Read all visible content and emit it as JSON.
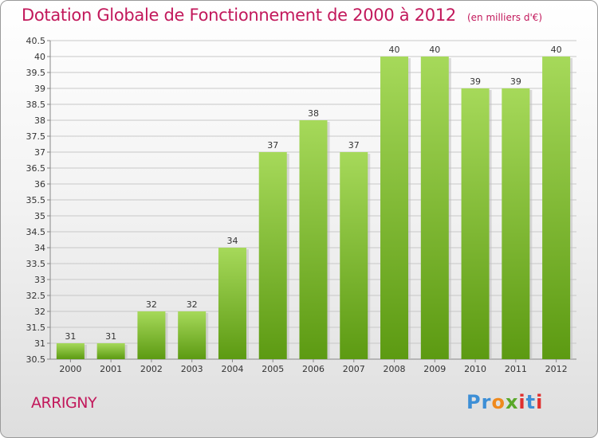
{
  "title": "Dotation Globale de Fonctionnement de 2000 à 2012",
  "unit": "(en milliers d'€)",
  "commune": "ARRIGNY",
  "logo": {
    "letters": [
      "P",
      "r",
      "o",
      "x",
      "i",
      "t",
      "i"
    ],
    "colors": [
      "#3d8fd6",
      "#3d8fd6",
      "#ef8a1e",
      "#5aa82a",
      "#e0302f",
      "#3d8fd6",
      "#e0302f"
    ]
  },
  "colors": {
    "title": "#c2185b",
    "bar_top": "#a6d95a",
    "bar_bottom": "#5c9a12",
    "grid": "#c8c8c8"
  },
  "chart_data": {
    "type": "bar",
    "categories": [
      "2000",
      "2001",
      "2002",
      "2003",
      "2004",
      "2005",
      "2006",
      "2007",
      "2008",
      "2009",
      "2010",
      "2011",
      "2012"
    ],
    "values": [
      31,
      31,
      32,
      32,
      34,
      37,
      38,
      37,
      40,
      40,
      39,
      39,
      40
    ],
    "ylim": [
      30.5,
      40.5
    ],
    "yticks": [
      "30.5",
      "31",
      "31.5",
      "32",
      "32.5",
      "33",
      "33.5",
      "34",
      "34.5",
      "35",
      "35.5",
      "36",
      "36.5",
      "37",
      "37.5",
      "38",
      "38.5",
      "39",
      "39.5",
      "40",
      "40.5"
    ],
    "grid": true
  }
}
